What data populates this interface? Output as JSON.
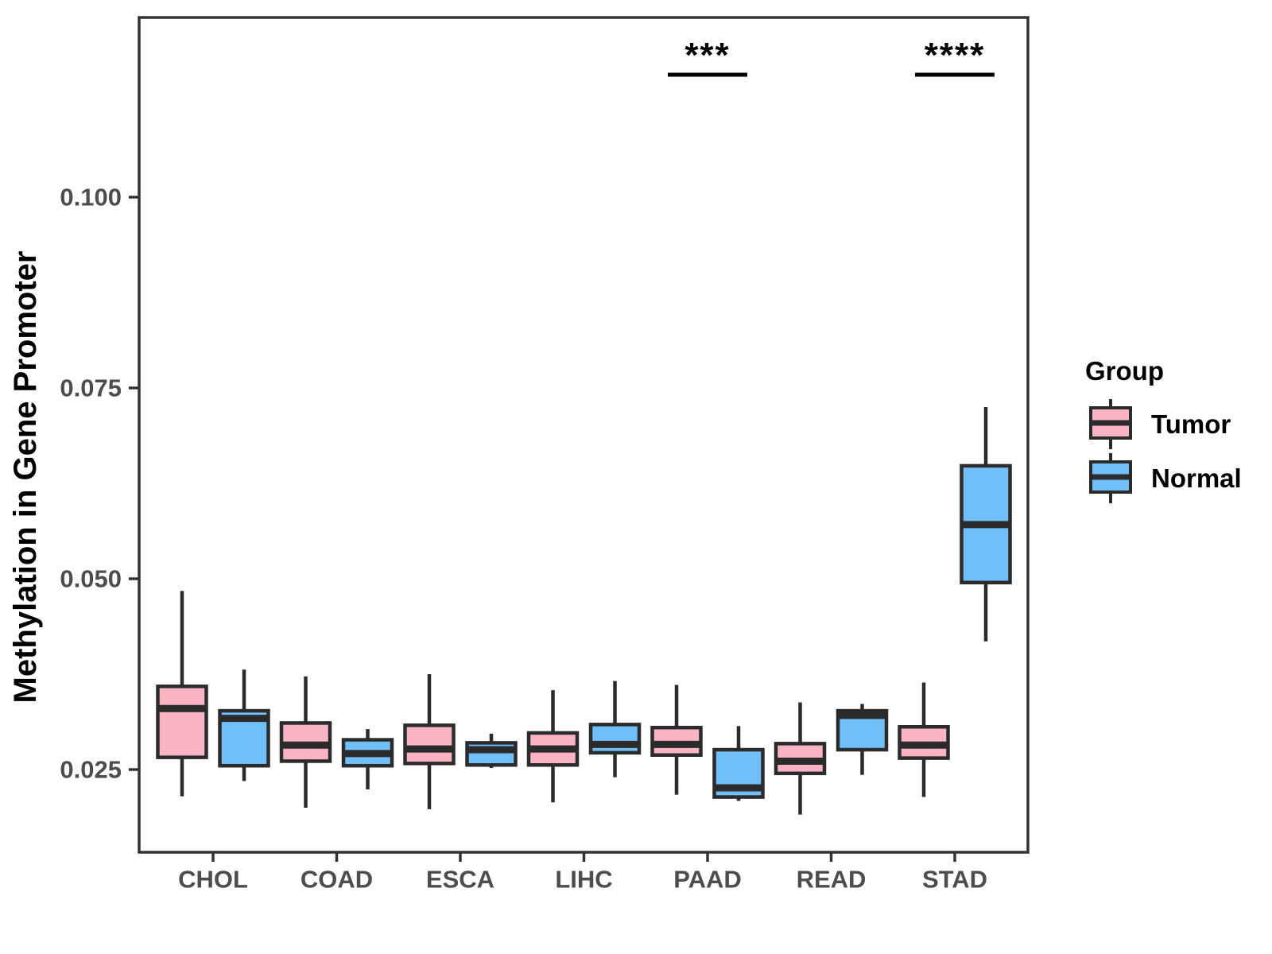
{
  "figure": {
    "background": "#FFFFFF"
  },
  "chart_data": {
    "type": "boxplot",
    "title": "",
    "xlabel": "",
    "ylabel": "Methylation in Gene Promoter",
    "categories": [
      "CHOL",
      "COAD",
      "ESCA",
      "LIHC",
      "PAAD",
      "READ",
      "STAD"
    ],
    "grid": false,
    "y_axis": {
      "tick_labels": [
        "0.100",
        "0.075",
        "0.050",
        "0.025"
      ],
      "tick_values": [
        0.1,
        0.075,
        0.05,
        0.025
      ],
      "range": [
        0.014,
        0.1235
      ]
    },
    "legend": {
      "title": "Group",
      "position": "right",
      "entries": [
        "Tumor",
        "Normal"
      ]
    },
    "colors": {
      "tumor_fill": "#FAB4C4",
      "normal_fill": "#70BFF8",
      "line_stroke": "#2B2B2B",
      "axis_text": "#4D4D4D",
      "panel_border": "#333333"
    },
    "series": [
      {
        "name": "Tumor",
        "boxes": [
          {
            "category": "CHOL",
            "whisker_low": 0.0215,
            "q1": 0.0266,
            "median": 0.033,
            "q3": 0.0359,
            "whisker_high": 0.0484
          },
          {
            "category": "COAD",
            "whisker_low": 0.02,
            "q1": 0.0261,
            "median": 0.0282,
            "q3": 0.0311,
            "whisker_high": 0.0372
          },
          {
            "category": "ESCA",
            "whisker_low": 0.0198,
            "q1": 0.0258,
            "median": 0.0277,
            "q3": 0.0308,
            "whisker_high": 0.0375
          },
          {
            "category": "LIHC",
            "whisker_low": 0.0207,
            "q1": 0.0256,
            "median": 0.0277,
            "q3": 0.0298,
            "whisker_high": 0.0354
          },
          {
            "category": "PAAD",
            "whisker_low": 0.0217,
            "q1": 0.0269,
            "median": 0.0283,
            "q3": 0.0305,
            "whisker_high": 0.0361
          },
          {
            "category": "READ",
            "whisker_low": 0.0191,
            "q1": 0.0245,
            "median": 0.0261,
            "q3": 0.0284,
            "whisker_high": 0.0338
          },
          {
            "category": "STAD",
            "whisker_low": 0.0214,
            "q1": 0.0265,
            "median": 0.0282,
            "q3": 0.0306,
            "whisker_high": 0.0364
          }
        ]
      },
      {
        "name": "Normal",
        "boxes": [
          {
            "category": "CHOL",
            "whisker_low": 0.0235,
            "q1": 0.0255,
            "median": 0.0317,
            "q3": 0.0327,
            "whisker_high": 0.0381
          },
          {
            "category": "COAD",
            "whisker_low": 0.0224,
            "q1": 0.0255,
            "median": 0.0271,
            "q3": 0.0289,
            "whisker_high": 0.0303
          },
          {
            "category": "ESCA",
            "whisker_low": 0.0252,
            "q1": 0.0256,
            "median": 0.0276,
            "q3": 0.0285,
            "whisker_high": 0.0297
          },
          {
            "category": "LIHC",
            "whisker_low": 0.024,
            "q1": 0.0272,
            "median": 0.0283,
            "q3": 0.0309,
            "whisker_high": 0.0366
          },
          {
            "category": "PAAD",
            "whisker_low": 0.0209,
            "q1": 0.0214,
            "median": 0.0226,
            "q3": 0.0276,
            "whisker_high": 0.0307
          },
          {
            "category": "READ",
            "whisker_low": 0.0243,
            "q1": 0.0276,
            "median": 0.0321,
            "q3": 0.0327,
            "whisker_high": 0.0336
          },
          {
            "category": "STAD",
            "whisker_low": 0.0418,
            "q1": 0.0495,
            "median": 0.0571,
            "q3": 0.0648,
            "whisker_high": 0.0725
          }
        ]
      }
    ],
    "significance": [
      {
        "category": "PAAD",
        "label": "***"
      },
      {
        "category": "STAD",
        "label": "****"
      }
    ]
  }
}
